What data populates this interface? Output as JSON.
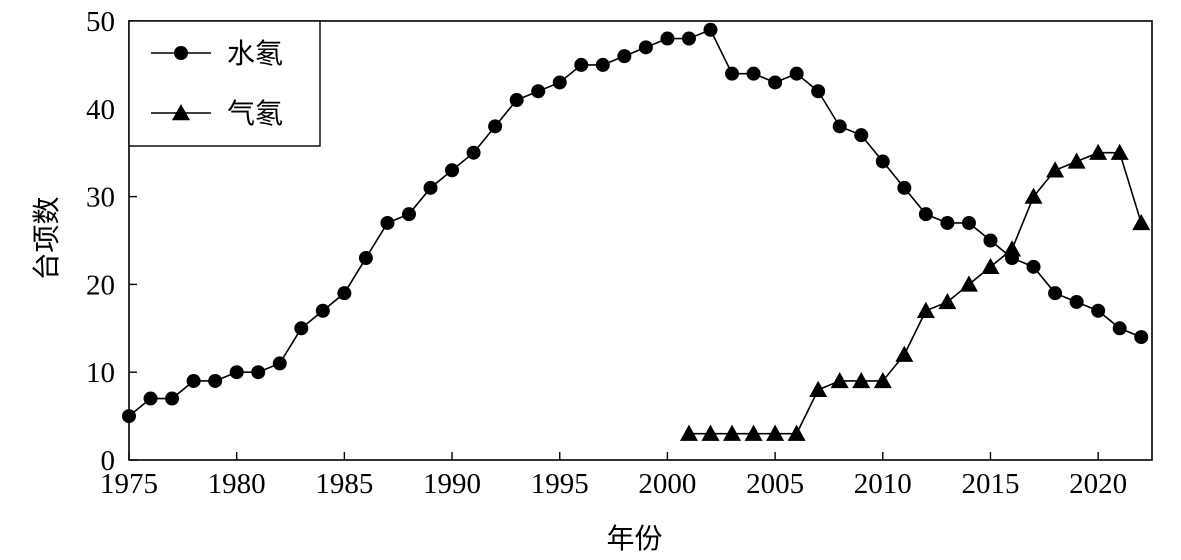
{
  "chart_data": {
    "type": "line",
    "title": "",
    "xlabel": "年份",
    "ylabel": "台项数",
    "xlim": [
      1975,
      2022.5
    ],
    "ylim": [
      0,
      50
    ],
    "xticks": [
      1975,
      1980,
      1985,
      1990,
      1995,
      2000,
      2005,
      2010,
      2015,
      2020
    ],
    "yticks": [
      0,
      10,
      20,
      30,
      40,
      50
    ],
    "grid": false,
    "legend_position": "top-left",
    "series": [
      {
        "name": "水氡",
        "marker": "circle",
        "color": "#000000",
        "x": [
          1975,
          1976,
          1977,
          1978,
          1979,
          1980,
          1981,
          1982,
          1983,
          1984,
          1985,
          1986,
          1987,
          1988,
          1989,
          1990,
          1991,
          1992,
          1993,
          1994,
          1995,
          1996,
          1997,
          1998,
          1999,
          2000,
          2001,
          2002,
          2003,
          2004,
          2005,
          2006,
          2007,
          2008,
          2009,
          2010,
          2011,
          2012,
          2013,
          2014,
          2015,
          2016,
          2017,
          2018,
          2019,
          2020,
          2021,
          2022
        ],
        "y": [
          5,
          7,
          7,
          9,
          9,
          10,
          10,
          11,
          15,
          17,
          19,
          23,
          27,
          28,
          31,
          33,
          35,
          38,
          41,
          42,
          43,
          45,
          45,
          46,
          47,
          48,
          48,
          49,
          44,
          44,
          43,
          44,
          42,
          38,
          37,
          34,
          31,
          28,
          27,
          27,
          25,
          23,
          22,
          19,
          18,
          17,
          15,
          14
        ]
      },
      {
        "name": "气氡",
        "marker": "triangle",
        "color": "#000000",
        "x": [
          2001,
          2002,
          2003,
          2004,
          2005,
          2006,
          2007,
          2008,
          2009,
          2010,
          2011,
          2012,
          2013,
          2014,
          2015,
          2016,
          2017,
          2018,
          2019,
          2020,
          2021,
          2022
        ],
        "y": [
          3,
          3,
          3,
          3,
          3,
          3,
          8,
          9,
          9,
          9,
          12,
          17,
          18,
          20,
          22,
          24,
          30,
          33,
          34,
          35,
          35,
          27
        ]
      }
    ]
  }
}
